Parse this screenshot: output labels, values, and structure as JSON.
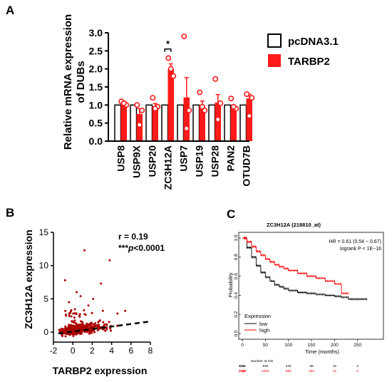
{
  "chart_data": [
    {
      "panel": "A",
      "type": "bar",
      "ylabel_lines": [
        "Relative mRNA expression",
        "of DUBs"
      ],
      "ylim": [
        0.0,
        3.0
      ],
      "yticks": [
        "0.0",
        "0.5",
        "1.0",
        "1.5",
        "2.0",
        "2.5",
        "3.0"
      ],
      "categories": [
        "USP8",
        "USP9X",
        "USP20",
        "ZC3H12A",
        "USP7",
        "USP19",
        "USP28",
        "PAN2",
        "OTUD7B"
      ],
      "series": [
        {
          "name": "pcDNA3.1",
          "values": [
            1,
            1,
            1,
            1,
            1,
            1,
            1,
            1,
            1
          ],
          "color": "#ffffff",
          "stroke": "#000000"
        },
        {
          "name": "TARBP2",
          "values": [
            1.05,
            0.75,
            0.97,
            1.99,
            1.21,
            0.99,
            1.07,
            0.9,
            1.18
          ],
          "errors": [
            0.05,
            0.15,
            0.07,
            0.15,
            0.55,
            0.12,
            0.22,
            0.1,
            0.12
          ],
          "points": [
            [
              1.1,
              1.0,
              1.05
            ],
            [
              1.0,
              0.85,
              0.45
            ],
            [
              1.2,
              0.95,
              0.9
            ],
            [
              2.3,
              1.8,
              2.0
            ],
            [
              2.9,
              0.85,
              0.35
            ],
            [
              1.35,
              0.85,
              0.95
            ],
            [
              1.72,
              1.05,
              0.6
            ],
            [
              1.18,
              0.9,
              0.95
            ],
            [
              1.3,
              1.2,
              0.7
            ]
          ],
          "color": "#ff1a1a"
        }
      ],
      "significance": {
        "label": "*",
        "category": "ZC3H12A"
      }
    },
    {
      "panel": "B",
      "type": "scatter",
      "xlabel": "TARBP2 expression",
      "ylabel": "ZC3H12A expression",
      "xlim": [
        -2,
        8
      ],
      "ylim": [
        -1.5,
        15
      ],
      "xticks": [
        "-2",
        "0",
        "2",
        "4",
        "6",
        "8"
      ],
      "yticks": [
        "0",
        "5",
        "10",
        "15"
      ],
      "stats_r": "r = 0.19",
      "stats_p_prefix": "***",
      "stats_p_italic": "p",
      "stats_p_suffix": "<0.0001",
      "trend": {
        "x": [
          -1.5,
          8
        ],
        "y": [
          -0.2,
          1.6
        ]
      },
      "highlight_points": [
        [
          1.2,
          12.3
        ],
        [
          3.8,
          10.8
        ],
        [
          -0.8,
          7.8
        ],
        [
          2.9,
          7.3
        ],
        [
          0.4,
          6.0
        ],
        [
          0.8,
          5.4
        ],
        [
          2.1,
          5.0
        ],
        [
          3.1,
          3.2
        ],
        [
          4.6,
          2.8
        ],
        [
          5.4,
          3.2
        ],
        [
          -0.4,
          4.5
        ],
        [
          1.6,
          4.0
        ]
      ],
      "point_color": "#aa0000"
    },
    {
      "panel": "C",
      "type": "line",
      "title": "ZC3H12A (218810_at)",
      "xlabel": "Time (months)",
      "ylabel": "Probability",
      "xlim": [
        0,
        300
      ],
      "ylim": [
        0,
        1
      ],
      "xticks": [
        "0",
        "50",
        "100",
        "150",
        "200",
        "250"
      ],
      "yticks": [
        "0.0",
        "0.2",
        "0.4",
        "0.6",
        "0.8",
        "1.0"
      ],
      "hr_text": "HR = 0.61 (0.54 − 0.67)",
      "logrank_text": "logrank P < 1E−16",
      "legend_title": "Expression",
      "series": [
        {
          "name": "low",
          "color": "#000000",
          "x": [
            0,
            10,
            20,
            30,
            40,
            50,
            60,
            70,
            80,
            90,
            100,
            120,
            140,
            160,
            180,
            200,
            215,
            230,
            250,
            270
          ],
          "y": [
            1.0,
            0.9,
            0.8,
            0.71,
            0.64,
            0.59,
            0.55,
            0.51,
            0.49,
            0.47,
            0.45,
            0.43,
            0.42,
            0.41,
            0.4,
            0.39,
            0.38,
            0.36,
            0.36,
            0.36
          ]
        },
        {
          "name": "high",
          "color": "#ff0000",
          "x": [
            0,
            10,
            20,
            30,
            40,
            50,
            60,
            70,
            80,
            90,
            100,
            120,
            140,
            160,
            180,
            200,
            215,
            230
          ],
          "y": [
            1.0,
            0.96,
            0.91,
            0.86,
            0.82,
            0.78,
            0.75,
            0.72,
            0.7,
            0.68,
            0.66,
            0.63,
            0.6,
            0.58,
            0.55,
            0.52,
            0.42,
            0.42
          ]
        }
      ],
      "risk_table": {
        "header": "Number at risk",
        "rows": [
          {
            "label": "low",
            "values": [
              "1231",
              "630",
              "240",
              "96",
              "15",
              "3"
            ],
            "color": "#000000"
          },
          {
            "label": "high",
            "values": [
              "3696",
              "2253",
              "896",
              "150",
              "12",
              "0"
            ],
            "color": "#ff0000"
          }
        ]
      }
    }
  ],
  "panel_labels": [
    "A",
    "B",
    "C"
  ]
}
